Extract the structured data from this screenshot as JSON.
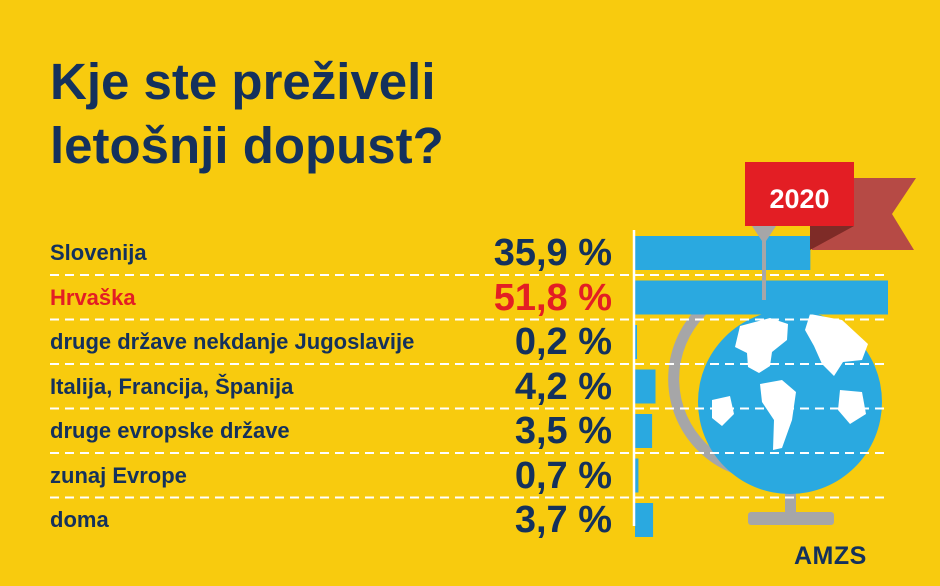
{
  "title_lines": [
    "Kje ste preživeli",
    "letošnji dopust?"
  ],
  "year_badge": "2020",
  "brand": "AMZS",
  "colors": {
    "background": "#F8CB0E",
    "text": "#14315C",
    "highlight": "#E31E24",
    "bar": "#2AA9E0",
    "flag": "#E31E24",
    "flag_tail": "#B64A45",
    "globe_water": "#2AA9E0",
    "stand": "#A6A6A8"
  },
  "chart_data": {
    "type": "bar",
    "orientation": "horizontal",
    "title": "Kje ste preživeli letošnji dopust?",
    "unit": "%",
    "xlim": [
      0,
      51.8
    ],
    "categories": [
      "Slovenija",
      "Hrvaška",
      "druge države nekdanje Jugoslavije",
      "Italija, Francija, Španija",
      "druge evropske države",
      "zunaj Evrope",
      "doma"
    ],
    "values": [
      35.9,
      51.8,
      0.2,
      4.2,
      3.5,
      0.7,
      3.7
    ],
    "value_labels": [
      "35,9 %",
      "51,8 %",
      "0,2 %",
      "4,2 %",
      "3,5 %",
      "0,7 %",
      "3,7 %"
    ],
    "highlighted_category": "Hrvaška",
    "series_label": "2020"
  }
}
